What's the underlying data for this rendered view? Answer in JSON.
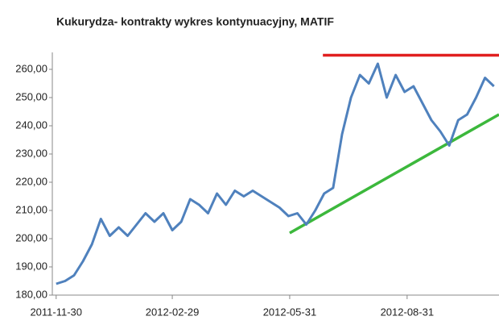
{
  "chart_data": {
    "type": "line",
    "title": "Kukurydza- kontrakty wykres kontynuacyjny, MATIF",
    "x": [
      "2011-11-30",
      "2011-12-07",
      "2011-12-14",
      "2011-12-21",
      "2011-12-28",
      "2012-01-04",
      "2012-01-11",
      "2012-01-18",
      "2012-01-25",
      "2012-02-01",
      "2012-02-08",
      "2012-02-15",
      "2012-02-22",
      "2012-02-29",
      "2012-03-07",
      "2012-03-14",
      "2012-03-21",
      "2012-03-28",
      "2012-04-04",
      "2012-04-11",
      "2012-04-18",
      "2012-04-25",
      "2012-05-02",
      "2012-05-09",
      "2012-05-16",
      "2012-05-23",
      "2012-05-30",
      "2012-06-06",
      "2012-06-13",
      "2012-06-20",
      "2012-06-27",
      "2012-07-04",
      "2012-07-11",
      "2012-07-18",
      "2012-07-25",
      "2012-08-01",
      "2012-08-08",
      "2012-08-15",
      "2012-08-22",
      "2012-08-29",
      "2012-09-05",
      "2012-09-12",
      "2012-09-19",
      "2012-09-26",
      "2012-10-03",
      "2012-10-10",
      "2012-10-17",
      "2012-10-24",
      "2012-10-31",
      "2012-11-07"
    ],
    "series": [
      {
        "name": "Kukurydza",
        "color": "#4f81bd",
        "values": [
          184,
          185,
          187,
          192,
          198,
          207,
          201,
          204,
          201,
          205,
          209,
          206,
          209,
          203,
          206,
          214,
          212,
          209,
          216,
          212,
          217,
          215,
          217,
          215,
          213,
          211,
          208,
          209,
          205,
          210,
          216,
          218,
          237,
          250,
          258,
          255,
          262,
          250,
          258,
          252,
          254,
          248,
          242,
          238,
          233,
          242,
          244,
          250,
          257,
          254
        ]
      }
    ],
    "trend_lines": [
      {
        "color": "#e02020",
        "x": [
          "2012-06-26",
          "2012-11-11"
        ],
        "y": [
          265,
          265
        ]
      },
      {
        "color": "#3cb83c",
        "x": [
          "2012-05-31",
          "2012-11-11"
        ],
        "y": [
          202,
          244
        ]
      }
    ],
    "xlim": [
      "2011-11-27",
      "2012-11-11"
    ],
    "xticks": [
      "2011-11-30",
      "2012-02-29",
      "2012-05-31",
      "2012-08-31"
    ],
    "ylim": [
      180,
      266
    ],
    "yticks": [
      {
        "value": 180,
        "label": "180,00"
      },
      {
        "value": 190,
        "label": "190,00"
      },
      {
        "value": 200,
        "label": "200,00"
      },
      {
        "value": 210,
        "label": "210,00"
      },
      {
        "value": 220,
        "label": "220,00"
      },
      {
        "value": 230,
        "label": "230,00"
      },
      {
        "value": 240,
        "label": "240,00"
      },
      {
        "value": 250,
        "label": "250,00"
      },
      {
        "value": 260,
        "label": "260,00"
      }
    ],
    "grid": false
  }
}
